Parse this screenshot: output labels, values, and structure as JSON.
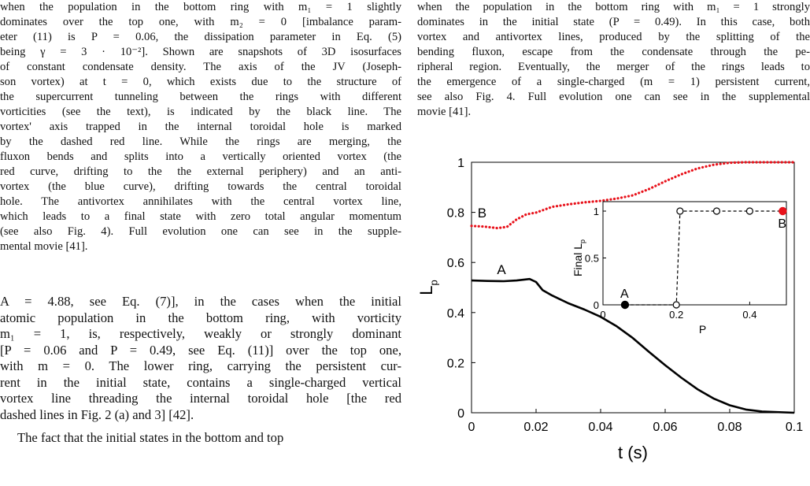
{
  "left_caption_lines": [
    "when the population in the bottom ring with m₁ = 1 slightly",
    "dominates over the top one, with m₂ = 0 [imbalance param-",
    "eter (11) is P = 0.06, the dissipation parameter in Eq. (5)",
    "being γ = 3 · 10⁻²]. Shown are snapshots of 3D isosurfaces",
    "of constant condensate density. The axis of the JV (Joseph-",
    "son vortex) at t = 0, which exists due to the structure of",
    "the supercurrent tunneling between the rings with different",
    "vorticities (see the text), is indicated by the black line. The",
    "vortex' axis trapped in the internal toroidal hole is marked",
    "by the dashed red line. While the rings are merging, the",
    "fluxon bends and splits into a vertically oriented vortex (the",
    "red curve, drifting to the the external periphery) and an anti-",
    "vortex (the blue curve), drifting towards the central toroidal",
    "hole. The antivortex annihilates with the central vortex line,",
    "which leads to a final state with zero total angular momentum",
    "(see also Fig. 4). Full evolution one can see in the supple-",
    "mental movie [41]."
  ],
  "left_body_lines": [
    "A = 4.88, see Eq. (7)], in the cases when the initial",
    "atomic population in the bottom ring, with vorticity",
    "m₁ = 1, is, respectively, weakly or strongly dominant",
    "[P = 0.06 and P = 0.49, see Eq. (11)] over the top one,",
    "with m = 0. The lower ring, carrying the persistent cur-",
    "rent in the initial state, contains a single-charged vertical",
    "vortex line threading the internal toroidal hole [the red",
    "dashed lines in Fig. 2 (a) and 3] [42]."
  ],
  "left_body_next": "The fact that the initial states in the bottom and top",
  "right_caption_lines": [
    "when the population in the bottom ring with m₁ = 1 strongly",
    "dominates in the initial state (P = 0.49). In this case, both",
    "vortex and antivortex lines, produced by the splitting of the",
    "bending fluxon, escape from the condensate through the pe-",
    "ripheral region. Eventually, the merger of the rings leads to",
    "the emergence of a single-charged (m = 1) persistent current,",
    "see also Fig. 4. Full evolution one can see in the supplemental",
    "movie [41]."
  ],
  "chart_data": [
    {
      "type": "line",
      "xlabel": "t (s)",
      "ylabel": "L_p",
      "xlim": [
        0,
        0.1
      ],
      "ylim": [
        0,
        1
      ],
      "xticks": [
        "0",
        "0.02",
        "0.04",
        "0.06",
        "0.08",
        "0.1"
      ],
      "yticks": [
        "0",
        "0.2",
        "0.4",
        "0.6",
        "0.8",
        "1"
      ],
      "series": [
        {
          "name": "B",
          "color": "#e8121b",
          "style": "dotted",
          "points": [
            [
              0,
              0.746
            ],
            [
              0.004,
              0.743
            ],
            [
              0.008,
              0.737
            ],
            [
              0.011,
              0.742
            ],
            [
              0.014,
              0.772
            ],
            [
              0.017,
              0.792
            ],
            [
              0.02,
              0.799
            ],
            [
              0.025,
              0.822
            ],
            [
              0.03,
              0.832
            ],
            [
              0.035,
              0.84
            ],
            [
              0.04,
              0.846
            ],
            [
              0.045,
              0.855
            ],
            [
              0.05,
              0.868
            ],
            [
              0.055,
              0.893
            ],
            [
              0.06,
              0.924
            ],
            [
              0.065,
              0.952
            ],
            [
              0.07,
              0.975
            ],
            [
              0.075,
              0.99
            ],
            [
              0.08,
              0.998
            ],
            [
              0.085,
              1.0
            ],
            [
              0.1,
              1.0
            ]
          ]
        },
        {
          "name": "A",
          "color": "#000000",
          "style": "solid",
          "points": [
            [
              0,
              0.528
            ],
            [
              0.005,
              0.526
            ],
            [
              0.01,
              0.525
            ],
            [
              0.014,
              0.528
            ],
            [
              0.018,
              0.534
            ],
            [
              0.02,
              0.522
            ],
            [
              0.022,
              0.49
            ],
            [
              0.025,
              0.468
            ],
            [
              0.03,
              0.437
            ],
            [
              0.035,
              0.412
            ],
            [
              0.04,
              0.383
            ],
            [
              0.045,
              0.345
            ],
            [
              0.05,
              0.298
            ],
            [
              0.055,
              0.243
            ],
            [
              0.06,
              0.19
            ],
            [
              0.065,
              0.14
            ],
            [
              0.07,
              0.094
            ],
            [
              0.075,
              0.057
            ],
            [
              0.08,
              0.03
            ],
            [
              0.085,
              0.013
            ],
            [
              0.09,
              0.005
            ],
            [
              0.1,
              0.0
            ]
          ]
        }
      ]
    },
    {
      "type": "scatter",
      "xlabel": "P",
      "ylabel": "Final L_p",
      "xlim": [
        0,
        0.5
      ],
      "ylim": [
        0,
        1
      ],
      "xticks": [
        "0",
        "0.2",
        "0.4"
      ],
      "yticks": [
        "0",
        "0.5",
        "1"
      ],
      "points": [
        {
          "x": 0.06,
          "y": 0,
          "filled": true,
          "color": "#000000",
          "label": "A"
        },
        {
          "x": 0.2,
          "y": 0,
          "filled": false,
          "color": "#000000"
        },
        {
          "x": 0.21,
          "y": 1,
          "filled": false,
          "color": "#000000"
        },
        {
          "x": 0.31,
          "y": 1,
          "filled": false,
          "color": "#000000"
        },
        {
          "x": 0.4,
          "y": 1,
          "filled": false,
          "color": "#000000"
        },
        {
          "x": 0.49,
          "y": 1,
          "filled": true,
          "color": "#e8121b",
          "label": "B"
        }
      ]
    }
  ]
}
